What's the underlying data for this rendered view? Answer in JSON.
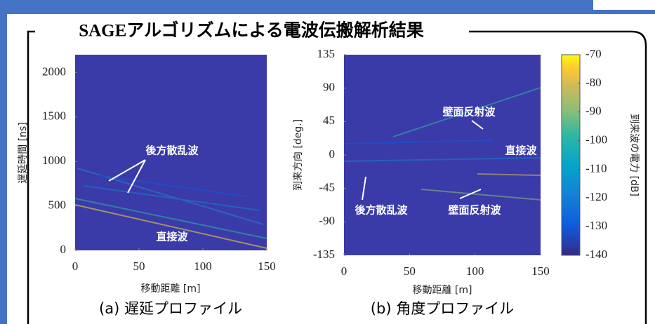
{
  "title": "SAGEアルゴリズムによる電波伝搬解析結果",
  "chart_data": [
    {
      "type": "heatmap",
      "caption": "(a) 遅延プロファイル",
      "xlabel": "移動距離 [m]",
      "ylabel": "遅延時間 [ns]",
      "xlim": [
        0,
        150
      ],
      "xticks": [
        0,
        50,
        100,
        150
      ],
      "ylim": [
        0,
        2200
      ],
      "yticks": [
        0,
        500,
        1000,
        1500,
        2000
      ],
      "annotations": [
        "後方散乱波",
        "直接波"
      ]
    },
    {
      "type": "heatmap",
      "caption": "(b) 角度プロファイル",
      "xlabel": "移動距離 [m]",
      "ylabel": "到来方向 [deg.]",
      "xlim": [
        0,
        150
      ],
      "xticks": [
        0,
        50,
        100,
        150
      ],
      "ylim": [
        -135,
        135
      ],
      "yticks": [
        -135,
        -90,
        -45,
        0,
        45,
        90,
        135
      ],
      "annotations": [
        "壁面反射波",
        "直接波",
        "後方散乱波",
        "壁面反射波"
      ],
      "colorbar": {
        "label": "到来波の電力 [dB]",
        "zlim": [
          -140,
          -70
        ],
        "zticks": [
          -70,
          -80,
          -90,
          -100,
          -110,
          -120,
          -130,
          -140
        ]
      }
    }
  ]
}
